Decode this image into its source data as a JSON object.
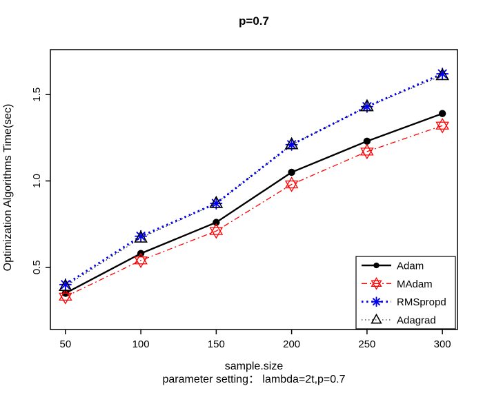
{
  "figure": {
    "title": "p=0.7",
    "xlabel": "sample.size",
    "xsublabel": "parameter setting：  lambda=2t,p=0.7",
    "ylabel": "Optimization Algorithms Time(sec)"
  },
  "chart_data": {
    "type": "line",
    "title": "p=0.7",
    "xlabel": "sample.size",
    "xsublabel": "parameter setting：  lambda=2t,p=0.7",
    "ylabel": "Optimization Algorithms Time(sec)",
    "x": [
      50,
      100,
      150,
      200,
      250,
      300
    ],
    "xticks": [
      50,
      100,
      150,
      200,
      250,
      300
    ],
    "yticks": [
      0.5,
      1.0,
      1.5
    ],
    "ytick_labels": [
      "0.5",
      "1.0",
      "1.5"
    ],
    "xlim": [
      40,
      310
    ],
    "ylim": [
      0.14,
      1.76
    ],
    "grid": false,
    "legend_position": "bottom-right",
    "series": [
      {
        "name": "Adam",
        "color": "#000000",
        "marker": "filled-circle",
        "line": "solid",
        "line_width": 2.4,
        "values": [
          0.35,
          0.58,
          0.76,
          1.05,
          1.23,
          1.39
        ]
      },
      {
        "name": "MAdam",
        "color": "#FF0000",
        "marker": "six-pointed-star",
        "line": "dash-dot",
        "line_width": 1.3,
        "values": [
          0.33,
          0.54,
          0.71,
          0.98,
          1.17,
          1.32
        ]
      },
      {
        "name": "RMSpropd",
        "color": "#0000EE",
        "marker": "asterisk",
        "line": "dotted",
        "line_width": 3.0,
        "values": [
          0.4,
          0.68,
          0.87,
          1.21,
          1.43,
          1.62
        ]
      },
      {
        "name": "Adagrad",
        "color": "#000000",
        "marker": "open-triangle",
        "line": "dotted",
        "line_width": 1.1,
        "values": [
          0.39,
          0.67,
          0.87,
          1.21,
          1.43,
          1.61
        ]
      }
    ]
  }
}
